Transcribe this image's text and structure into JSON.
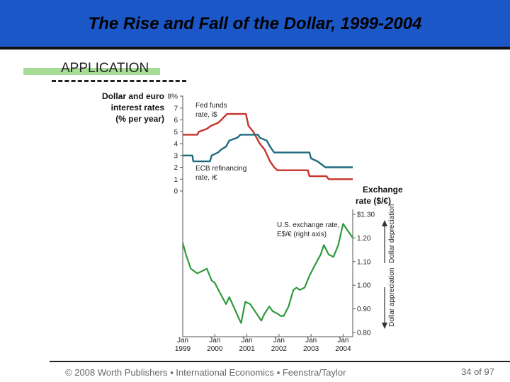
{
  "slide": {
    "title": "The Rise and Fall of the Dollar, 1999-2004",
    "section": "APPLICATION",
    "footer": "© 2008 Worth Publishers ▪ International Economics ▪ Feenstra/Taylor",
    "page": "34 of 97"
  },
  "colors": {
    "title_bar": "#1c57c8",
    "fed": "#c8322c",
    "ecb": "#1e6b7e",
    "exchange": "#2e9a3c",
    "accent_bar": "#a6dc96"
  },
  "chart_data": {
    "type": "line",
    "title": "",
    "x_tick_labels": [
      {
        "month": "Jan",
        "year": "1999"
      },
      {
        "month": "Jan",
        "year": "2000"
      },
      {
        "month": "Jan",
        "year": "2001"
      },
      {
        "month": "Jan",
        "year": "2002"
      },
      {
        "month": "Jan",
        "year": "2003"
      },
      {
        "month": "Jan",
        "year": "2004"
      }
    ],
    "left_axis": {
      "label_lines": [
        "Dollar and euro",
        "interest rates",
        "(% per year)"
      ],
      "ylim": [
        0,
        8
      ],
      "ticks": [
        "8%",
        "7",
        "6",
        "5",
        "4",
        "3",
        "2",
        "1",
        "0"
      ]
    },
    "right_axis": {
      "label_lines": [
        "Exchange",
        "rate ($/€)"
      ],
      "ylim": [
        0.8,
        1.3
      ],
      "ticks": [
        "$1.30",
        "1.20",
        "1.10",
        "1.00",
        "0.90",
        "0.80"
      ]
    },
    "annotations": {
      "fed_line1": "Fed funds",
      "fed_line2": "rate, i$",
      "ecb_line1": "ECB refinancing",
      "ecb_line2": "rate, i€",
      "ex_line1": "U.S. exchange rate,",
      "ex_line2": "E$/€ (right axis)",
      "dollar_depreciation": "Dollar depreciation",
      "dollar_appreciation": "Dollar appreciation"
    },
    "series": [
      {
        "name": "Fed funds rate",
        "axis": "left",
        "points": [
          [
            1999.0,
            4.75
          ],
          [
            1999.46,
            4.75
          ],
          [
            1999.5,
            5.0
          ],
          [
            1999.75,
            5.25
          ],
          [
            1999.88,
            5.5
          ],
          [
            2000.1,
            5.75
          ],
          [
            2000.2,
            6.0
          ],
          [
            2000.38,
            6.5
          ],
          [
            2000.97,
            6.5
          ],
          [
            2001.05,
            5.5
          ],
          [
            2001.2,
            5.0
          ],
          [
            2001.3,
            4.5
          ],
          [
            2001.4,
            4.0
          ],
          [
            2001.55,
            3.5
          ],
          [
            2001.72,
            2.5
          ],
          [
            2001.85,
            2.0
          ],
          [
            2001.95,
            1.75
          ],
          [
            2002.9,
            1.75
          ],
          [
            2002.95,
            1.25
          ],
          [
            2003.48,
            1.25
          ],
          [
            2003.55,
            1.0
          ],
          [
            2004.3,
            1.0
          ]
        ]
      },
      {
        "name": "ECB refinancing rate",
        "axis": "left",
        "points": [
          [
            1999.0,
            3.0
          ],
          [
            1999.3,
            3.0
          ],
          [
            1999.33,
            2.5
          ],
          [
            1999.85,
            2.5
          ],
          [
            1999.9,
            3.0
          ],
          [
            2000.1,
            3.25
          ],
          [
            2000.2,
            3.5
          ],
          [
            2000.35,
            3.75
          ],
          [
            2000.45,
            4.25
          ],
          [
            2000.7,
            4.5
          ],
          [
            2000.8,
            4.75
          ],
          [
            2001.35,
            4.75
          ],
          [
            2001.4,
            4.5
          ],
          [
            2001.62,
            4.25
          ],
          [
            2001.72,
            3.75
          ],
          [
            2001.85,
            3.25
          ],
          [
            2002.95,
            3.25
          ],
          [
            2003.0,
            2.75
          ],
          [
            2003.2,
            2.5
          ],
          [
            2003.45,
            2.0
          ],
          [
            2004.3,
            2.0
          ]
        ]
      },
      {
        "name": "U.S. exchange rate, E$/€",
        "axis": "right",
        "points": [
          [
            1999.0,
            1.18
          ],
          [
            1999.1,
            1.13
          ],
          [
            1999.25,
            1.07
          ],
          [
            1999.45,
            1.05
          ],
          [
            1999.6,
            1.06
          ],
          [
            1999.75,
            1.07
          ],
          [
            1999.9,
            1.02
          ],
          [
            2000.0,
            1.01
          ],
          [
            2000.15,
            0.97
          ],
          [
            2000.35,
            0.92
          ],
          [
            2000.45,
            0.95
          ],
          [
            2000.55,
            0.92
          ],
          [
            2000.75,
            0.86
          ],
          [
            2000.82,
            0.84
          ],
          [
            2000.95,
            0.93
          ],
          [
            2001.1,
            0.92
          ],
          [
            2001.25,
            0.89
          ],
          [
            2001.45,
            0.85
          ],
          [
            2001.55,
            0.88
          ],
          [
            2001.7,
            0.91
          ],
          [
            2001.8,
            0.89
          ],
          [
            2001.95,
            0.88
          ],
          [
            2002.05,
            0.87
          ],
          [
            2002.15,
            0.87
          ],
          [
            2002.3,
            0.91
          ],
          [
            2002.45,
            0.98
          ],
          [
            2002.55,
            0.99
          ],
          [
            2002.65,
            0.98
          ],
          [
            2002.8,
            0.99
          ],
          [
            2002.95,
            1.04
          ],
          [
            2003.1,
            1.08
          ],
          [
            2003.3,
            1.13
          ],
          [
            2003.4,
            1.17
          ],
          [
            2003.55,
            1.13
          ],
          [
            2003.7,
            1.12
          ],
          [
            2003.85,
            1.17
          ],
          [
            2004.0,
            1.26
          ],
          [
            2004.1,
            1.24
          ],
          [
            2004.2,
            1.22
          ],
          [
            2004.3,
            1.2
          ]
        ]
      }
    ]
  }
}
